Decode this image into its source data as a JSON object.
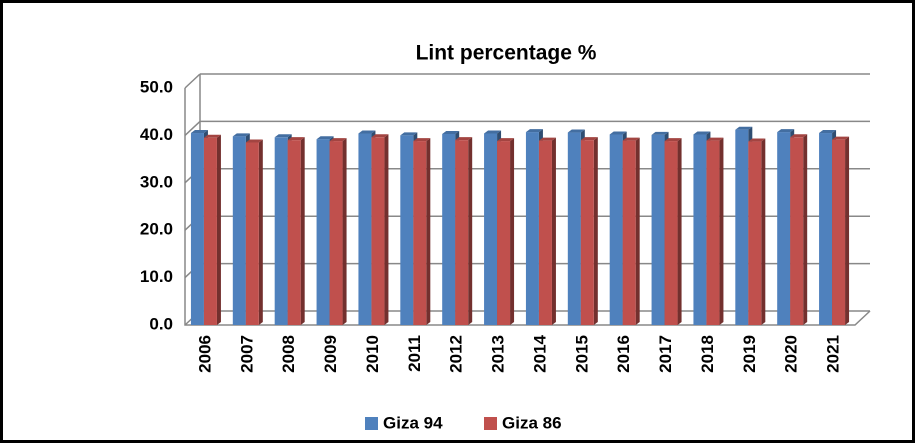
{
  "chart_data": {
    "type": "bar",
    "title": "Lint percentage %",
    "categories": [
      "2006",
      "2007",
      "2008",
      "2009",
      "2010",
      "2011",
      "2012",
      "2013",
      "2014",
      "2015",
      "2016",
      "2017",
      "2018",
      "2019",
      "2020",
      "2021"
    ],
    "series": [
      {
        "name": "Giza 94",
        "color": "#4f81bd",
        "values": [
          40.5,
          39.8,
          39.6,
          39.2,
          40.4,
          40.0,
          40.3,
          40.4,
          40.7,
          40.6,
          40.2,
          40.1,
          40.2,
          41.2,
          40.7,
          40.5
        ]
      },
      {
        "name": "Giza 86",
        "color": "#c0504d",
        "values": [
          39.5,
          38.5,
          39.0,
          38.8,
          39.6,
          38.8,
          39.0,
          38.8,
          38.9,
          39.0,
          38.9,
          38.8,
          38.9,
          38.7,
          39.6,
          39.1
        ]
      }
    ],
    "ylim": [
      0,
      50
    ],
    "yticks": [
      {
        "value": 0,
        "label": "0.0"
      },
      {
        "value": 10,
        "label": "10.0"
      },
      {
        "value": 20,
        "label": "20.0"
      },
      {
        "value": 30,
        "label": "30.0"
      },
      {
        "value": 40,
        "label": "40.0"
      },
      {
        "value": 50,
        "label": "50.0"
      }
    ],
    "grid": true,
    "legend": "bottom"
  }
}
